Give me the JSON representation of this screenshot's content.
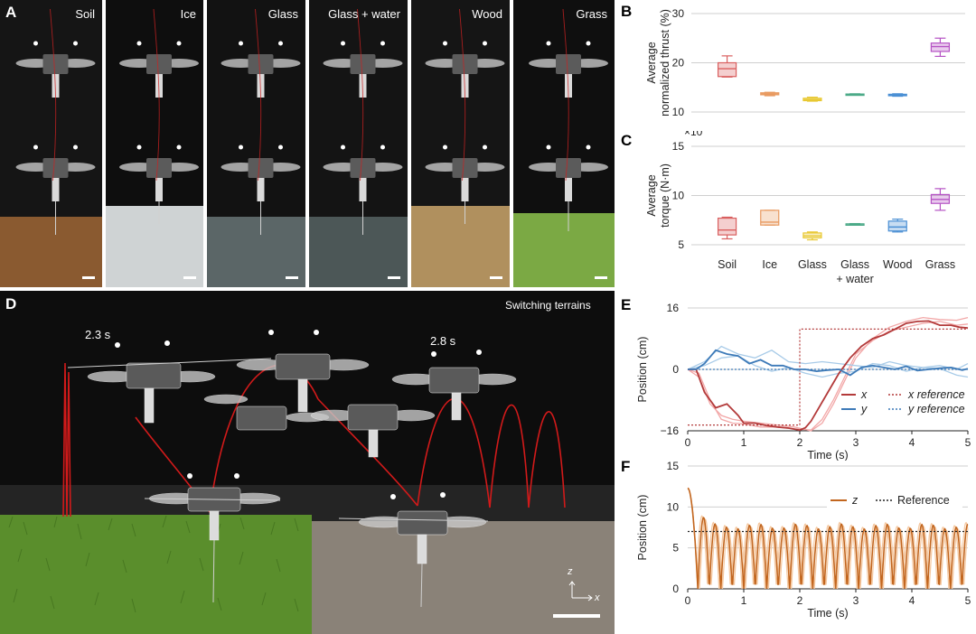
{
  "figure": {
    "panels": {
      "A": "A",
      "B": "B",
      "C": "C",
      "D": "D",
      "E": "E",
      "F": "F"
    },
    "terrain_photos": [
      {
        "label": "Soil",
        "ground": "#8a5a30",
        "backdrop": "#151515"
      },
      {
        "label": "Ice",
        "ground": "#cfd3d4",
        "backdrop": "#0e0e0e"
      },
      {
        "label": "Glass",
        "ground": "#5b6667",
        "backdrop": "#121212"
      },
      {
        "label": "Glass + water",
        "ground": "#4c5757",
        "backdrop": "#141414"
      },
      {
        "label": "Wood",
        "ground": "#b0905e",
        "backdrop": "#151515"
      },
      {
        "label": "Grass",
        "ground": "#7ba944",
        "backdrop": "#0f0f0f"
      }
    ],
    "switching_photo": {
      "label": "Switching terrains",
      "time_left": "2.3 s",
      "time_right": "2.8 s",
      "axis_z": "z",
      "axis_x": "x"
    }
  },
  "chart_data": [
    {
      "id": "B",
      "type": "box",
      "ylabel_line1": "Average",
      "ylabel_line2": "normalized thrust (%)",
      "ylim": [
        10,
        30
      ],
      "yticks": [
        10,
        20,
        30
      ],
      "categories": [
        "Soil",
        "Ice",
        "Glass",
        "Glass + water",
        "Wood",
        "Grass"
      ],
      "boxes": [
        {
          "min": 17.1,
          "q1": 17.2,
          "median": 18.8,
          "q3": 20.0,
          "max": 21.4,
          "color": "#d95f5f"
        },
        {
          "min": 13.3,
          "q1": 13.5,
          "median": 13.7,
          "q3": 13.9,
          "max": 14.0,
          "color": "#e89a60"
        },
        {
          "min": 12.2,
          "q1": 12.3,
          "median": 12.5,
          "q3": 12.8,
          "max": 13.0,
          "color": "#e8c832"
        },
        {
          "min": 13.5,
          "q1": 13.55,
          "median": 13.6,
          "q3": 13.65,
          "max": 13.7,
          "color": "#4caa88"
        },
        {
          "min": 13.2,
          "q1": 13.3,
          "median": 13.4,
          "q3": 13.6,
          "max": 13.7,
          "color": "#4a8fd4"
        },
        {
          "min": 21.3,
          "q1": 22.3,
          "median": 23.3,
          "q3": 24.0,
          "max": 25.0,
          "color": "#b552c4"
        }
      ]
    },
    {
      "id": "C",
      "type": "box",
      "ylabel_line1": "Average",
      "ylabel_line2": "torque (N·m)",
      "scale_base": "×10",
      "scale_exp": "−6",
      "ylim": [
        5,
        15
      ],
      "yticks": [
        5,
        10,
        15
      ],
      "categories": [
        "Soil",
        "Ice",
        "Glass",
        "Glass\n+ water",
        "Wood",
        "Grass"
      ],
      "boxes": [
        {
          "min": 5.6,
          "q1": 6.0,
          "median": 6.5,
          "q3": 7.7,
          "max": 7.8,
          "color": "#d95f5f"
        },
        {
          "min": 7.0,
          "q1": 7.0,
          "median": 7.3,
          "q3": 8.5,
          "max": 8.5,
          "color": "#e89a60"
        },
        {
          "min": 5.5,
          "q1": 5.7,
          "median": 5.9,
          "q3": 6.2,
          "max": 6.3,
          "color": "#e8c832"
        },
        {
          "min": 7.05,
          "q1": 7.08,
          "median": 7.1,
          "q3": 7.12,
          "max": 7.15,
          "color": "#4caa88"
        },
        {
          "min": 6.3,
          "q1": 6.4,
          "median": 6.8,
          "q3": 7.4,
          "max": 7.6,
          "color": "#4a8fd4"
        },
        {
          "min": 8.5,
          "q1": 9.2,
          "median": 9.6,
          "q3": 10.1,
          "max": 10.7,
          "color": "#b552c4"
        }
      ]
    },
    {
      "id": "E",
      "type": "line",
      "xlabel": "Time (s)",
      "ylabel": "Position (cm)",
      "xlim": [
        0,
        5
      ],
      "ylim": [
        -16,
        16
      ],
      "xticks": [
        0,
        1,
        2,
        3,
        4,
        5
      ],
      "yticks": [
        -16,
        0,
        16
      ],
      "series": [
        {
          "name": "x",
          "color": "#b33a3a",
          "x": [
            0,
            0.15,
            0.3,
            0.5,
            0.7,
            0.9,
            1.0,
            1.2,
            1.4,
            1.6,
            1.8,
            2.0,
            2.1,
            2.2,
            2.3,
            2.5,
            2.7,
            2.9,
            3.1,
            3.3,
            3.5,
            3.7,
            3.9,
            4.1,
            4.3,
            4.5,
            4.7,
            4.85,
            5.0
          ],
          "y": [
            0,
            0,
            -6,
            -10,
            -9,
            -12,
            -14,
            -14,
            -14.6,
            -15,
            -15.3,
            -15.8,
            -15.2,
            -13.5,
            -11,
            -6,
            -1,
            3,
            6,
            8,
            9,
            10.5,
            12,
            12.5,
            12.6,
            11.5,
            11.5,
            11,
            10.8
          ]
        },
        {
          "name": "y",
          "color": "#3d7ab8",
          "x": [
            0,
            0.15,
            0.3,
            0.5,
            0.7,
            0.9,
            1.1,
            1.3,
            1.5,
            1.7,
            1.9,
            2.1,
            2.3,
            2.5,
            2.7,
            2.9,
            3.1,
            3.3,
            3.5,
            3.7,
            3.9,
            4.1,
            4.3,
            4.5,
            4.7,
            4.9,
            5.0
          ],
          "y": [
            0,
            0,
            1.5,
            5,
            4,
            3.5,
            1.5,
            2.5,
            1,
            1,
            0,
            0,
            -0.5,
            -0.2,
            0,
            -1.5,
            0.5,
            1,
            0.5,
            0,
            0.8,
            -0.3,
            0,
            0.3,
            0.5,
            -0.2,
            0.2
          ]
        }
      ],
      "faint_runs": [
        {
          "color": "#f2a7a7",
          "x": [
            0,
            0.2,
            0.4,
            0.6,
            0.8,
            1.0,
            1.3,
            1.6,
            1.9,
            2.2,
            2.4,
            2.6,
            2.8,
            3.0,
            3.3,
            3.6,
            3.9,
            4.2,
            4.5,
            4.8,
            5.0
          ],
          "y": [
            0,
            -2,
            -9,
            -12,
            -13,
            -13.5,
            -14,
            -14.5,
            -15,
            -16,
            -14,
            -9,
            -3,
            3,
            8,
            11,
            12.5,
            13.5,
            13,
            12.8,
            13.5
          ]
        },
        {
          "color": "#f2a7a7",
          "x": [
            0,
            0.2,
            0.4,
            0.6,
            0.8,
            1.0,
            1.3,
            1.6,
            1.9,
            2.2,
            2.4,
            2.6,
            2.8,
            3.0,
            3.3,
            3.6,
            3.9,
            4.2,
            4.5,
            4.8,
            5.0
          ],
          "y": [
            0,
            -1,
            -8,
            -13,
            -14,
            -14.2,
            -15,
            -15,
            -15.5,
            -15.8,
            -13,
            -8,
            -2,
            4,
            7.5,
            10,
            11,
            12,
            12.5,
            11.5,
            11.8
          ]
        },
        {
          "color": "#a8cbe8",
          "x": [
            0,
            0.3,
            0.6,
            0.9,
            1.2,
            1.5,
            1.8,
            2.1,
            2.4,
            2.7,
            3.0,
            3.3,
            3.6,
            3.9,
            4.2,
            4.5,
            4.8,
            5.0
          ],
          "y": [
            0,
            2,
            6,
            4,
            3,
            5,
            2,
            1.5,
            2,
            1.5,
            1,
            0.5,
            2,
            1,
            0.5,
            1,
            0,
            1.5
          ]
        },
        {
          "color": "#a8cbe8",
          "x": [
            0,
            0.3,
            0.6,
            0.9,
            1.2,
            1.5,
            1.8,
            2.1,
            2.4,
            2.7,
            3.0,
            3.3,
            3.6,
            3.9,
            4.2,
            4.5,
            4.8,
            5.0
          ],
          "y": [
            0,
            1,
            3,
            3.5,
            1,
            -0.5,
            0.5,
            -1,
            -2,
            -1,
            -0.5,
            1.5,
            1,
            -0.5,
            0.5,
            0.2,
            -1.5,
            -2
          ]
        }
      ],
      "references": [
        {
          "name": "x reference",
          "color": "#b33a3a",
          "x": [
            0,
            2,
            2,
            5
          ],
          "y": [
            -14.5,
            -14.5,
            10.5,
            10.5
          ]
        },
        {
          "name": "y reference",
          "color": "#3d7ab8",
          "x": [
            0,
            5
          ],
          "y": [
            0,
            0
          ]
        }
      ],
      "legend": [
        {
          "label": "x",
          "style": "solid",
          "color": "#b33a3a"
        },
        {
          "label": "x reference",
          "style": "dotted",
          "color": "#b33a3a"
        },
        {
          "label": "y",
          "style": "solid",
          "color": "#3d7ab8"
        },
        {
          "label": "y reference",
          "style": "dotted",
          "color": "#3d7ab8"
        }
      ]
    },
    {
      "id": "F",
      "type": "line",
      "xlabel": "Time (s)",
      "ylabel": "Position (cm)",
      "xlim": [
        0,
        5
      ],
      "ylim": [
        0,
        15
      ],
      "xticks": [
        0,
        1,
        2,
        3,
        4,
        5
      ],
      "yticks": [
        0,
        5,
        10,
        15
      ],
      "series": [
        {
          "name": "z",
          "color": "#c2661f",
          "start": 12.3,
          "hop_period": 0.205,
          "peak": 7.6,
          "first_hop_peak": 8.7
        }
      ],
      "faint_color": "#f5c8a0",
      "references": [
        {
          "name": "Reference",
          "y": 7.0,
          "color": "#222222"
        }
      ],
      "legend": [
        {
          "label": "z",
          "style": "solid",
          "color": "#c2661f"
        },
        {
          "label": "Reference",
          "style": "dotted",
          "color": "#222222"
        }
      ]
    }
  ]
}
